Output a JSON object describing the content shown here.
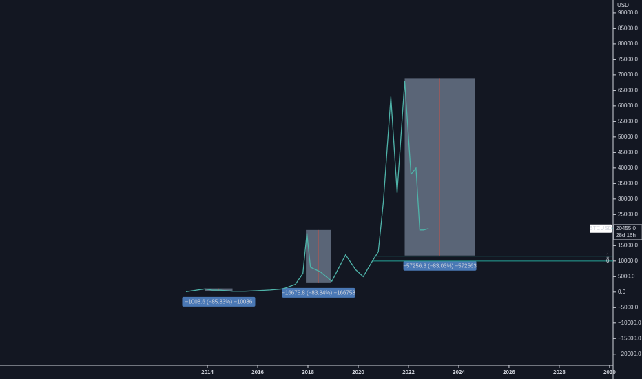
{
  "chart_data": {
    "type": "line",
    "y_axis_label": "USD",
    "series": [
      {
        "name": "BTCUSD",
        "color": "#4fb3a9",
        "x": [
          2013.15,
          2013.9,
          2014.2,
          2014.5,
          2015.0,
          2015.5,
          2016.0,
          2016.5,
          2017.0,
          2017.5,
          2017.8,
          2017.96,
          2018.1,
          2018.5,
          2018.95,
          2019.5,
          2019.9,
          2020.2,
          2020.6,
          2020.8,
          2021.0,
          2021.3,
          2021.55,
          2021.85,
          2022.1,
          2022.3,
          2022.45,
          2022.6,
          2022.8
        ],
        "values": [
          100,
          1000,
          600,
          600,
          250,
          250,
          430,
          650,
          1000,
          2500,
          6000,
          19000,
          8000,
          6500,
          3500,
          12000,
          7200,
          5000,
          10500,
          13000,
          29000,
          63000,
          32000,
          68000,
          38000,
          40000,
          20000,
          20000,
          20455
        ]
      }
    ],
    "last_price": {
      "value": 20455,
      "label": "20455.0",
      "countdown": "28d 16h"
    },
    "ranges": [
      {
        "x": [
          2013.9,
          2015.0
        ],
        "y": [
          1163,
          200
        ],
        "label": "−1008.6 (−85.83%) −10086"
      },
      {
        "x": [
          2017.92,
          2018.93
        ],
        "y": [
          20000,
          3100
        ],
        "label": "−16675.8 (−83.84%) −166758"
      },
      {
        "x": [
          2021.85,
          2024.65
        ],
        "y": [
          69000,
          11800
        ],
        "label": "−57256.3 (−83.03%) −572563"
      }
    ],
    "levels": [
      {
        "value": 11600,
        "label": "1",
        "x_start": 2020.6
      },
      {
        "value": 10000,
        "label": "0",
        "x_start": 2020.6
      }
    ],
    "xlim": [
      2005.75,
      2030.14
    ],
    "xticks": [
      2014,
      2016,
      2018,
      2020,
      2022,
      2024,
      2026,
      2028,
      2030
    ],
    "ylim": [
      -23600,
      94200
    ],
    "yticks": [
      {
        "value": 90000,
        "label": "90000.0"
      },
      {
        "value": 85000,
        "label": "85000.0"
      },
      {
        "value": 80000,
        "label": "80000.0"
      },
      {
        "value": 75000,
        "label": "75000.0"
      },
      {
        "value": 70000,
        "label": "70000.0"
      },
      {
        "value": 65000,
        "label": "65000.0"
      },
      {
        "value": 60000,
        "label": "60000.0"
      },
      {
        "value": 55000,
        "label": "55000.0"
      },
      {
        "value": 50000,
        "label": "50000.0"
      },
      {
        "value": 45000,
        "label": "45000.0"
      },
      {
        "value": 40000,
        "label": "40000.0"
      },
      {
        "value": 35000,
        "label": "35000.0"
      },
      {
        "value": 30000,
        "label": "30000.0"
      },
      {
        "value": 25000,
        "label": "25000.0"
      },
      {
        "value": 15000,
        "label": "15000.0"
      },
      {
        "value": 10000,
        "label": "10000.0"
      },
      {
        "value": 5000,
        "label": "5000.0"
      },
      {
        "value": 0,
        "label": "0.0"
      },
      {
        "value": -5000,
        "label": "−5000.0"
      },
      {
        "value": -10000,
        "label": "−10000.0"
      },
      {
        "value": -15000,
        "label": "−15000.0"
      },
      {
        "value": -20000,
        "label": "−20000.0"
      }
    ]
  }
}
